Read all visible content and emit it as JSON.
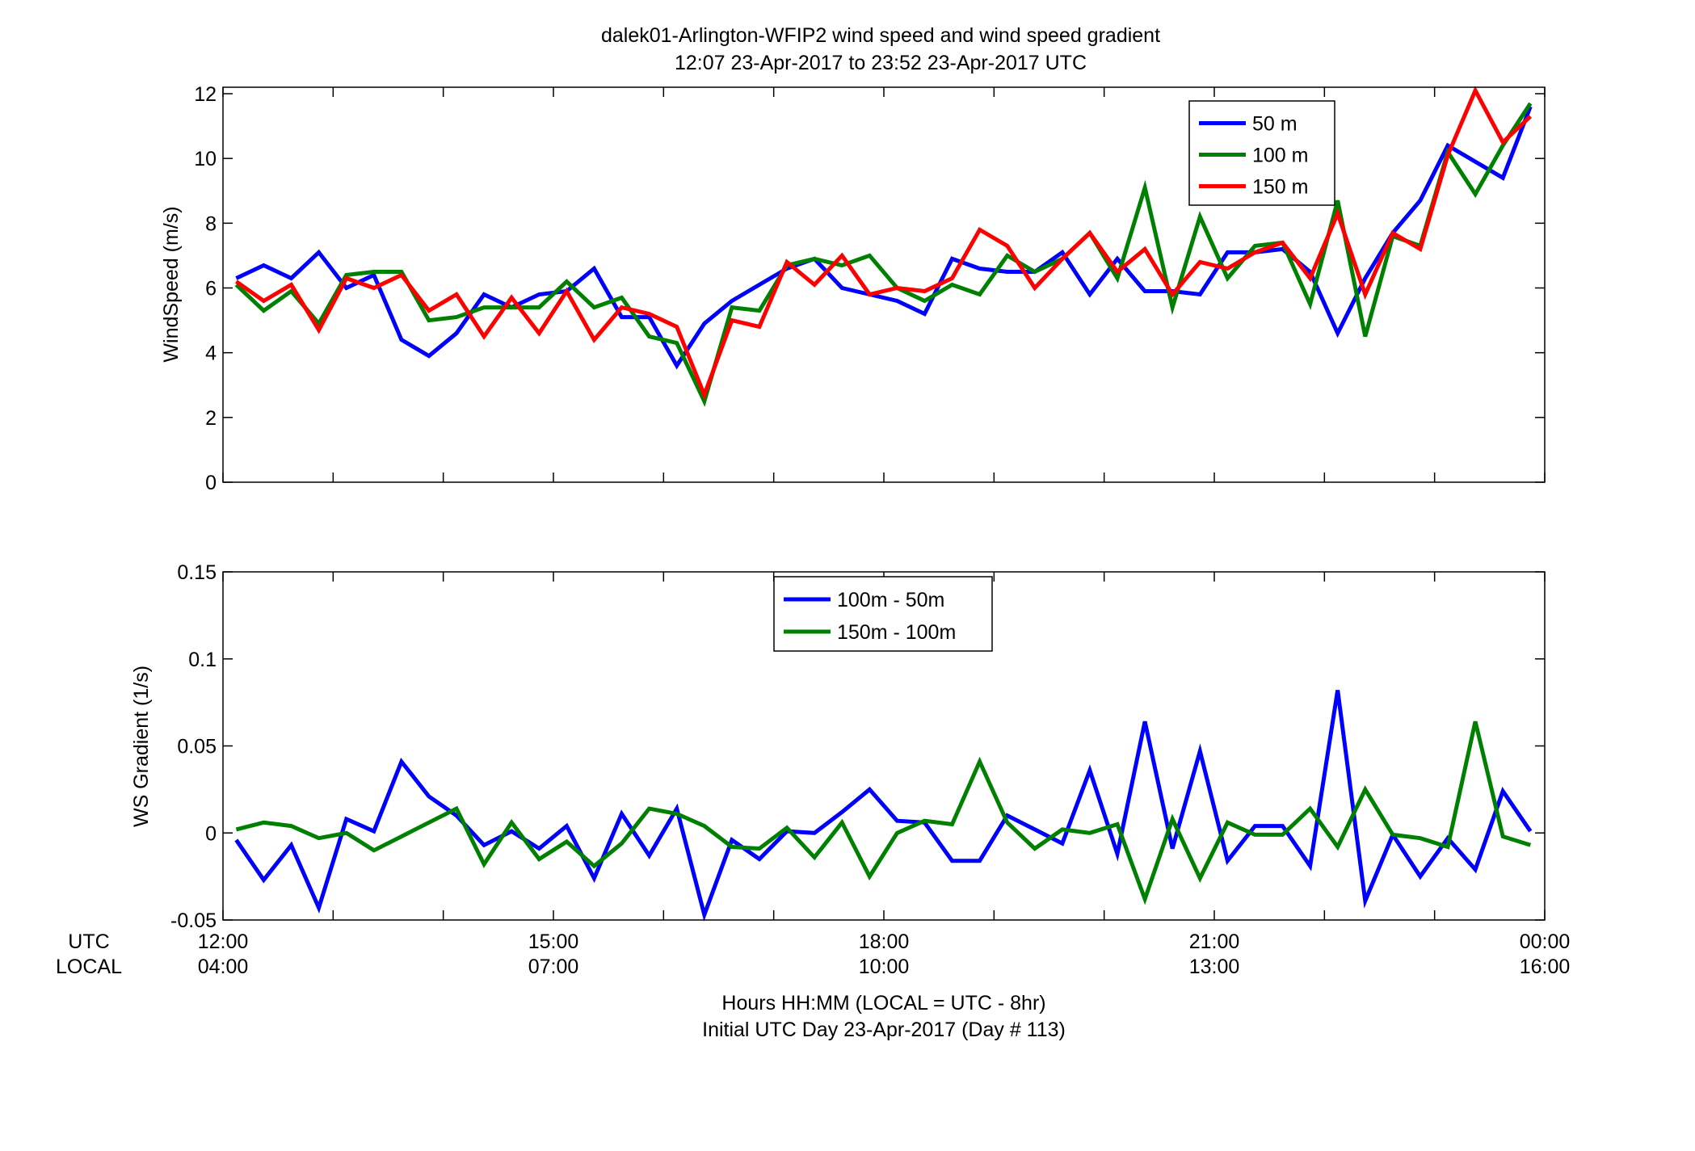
{
  "title": {
    "line1": "dalek01-Arlington-WFIP2  wind speed and wind speed gradient",
    "line2": "12:07 23-Apr-2017 to 23:52 23-Apr-2017  UTC"
  },
  "xaxis": {
    "utc_row_label": "UTC",
    "local_row_label": "LOCAL",
    "utc_ticks": [
      "12:00",
      "15:00",
      "18:00",
      "21:00",
      "00:00"
    ],
    "local_ticks": [
      "04:00",
      "07:00",
      "10:00",
      "13:00",
      "16:00"
    ],
    "xlabel_line1": "Hours HH:MM  (LOCAL = UTC - 8hr)",
    "xlabel_line2": "Initial UTC Day 23-Apr-2017 (Day # 113)"
  },
  "chart_data": [
    {
      "type": "line",
      "ylabel": "WindSpeed (m/s)",
      "xlim": [
        12,
        24
      ],
      "ylim": [
        0,
        12.2
      ],
      "yticks": [
        0,
        2,
        4,
        6,
        8,
        10,
        12
      ],
      "legend_position": "top-right",
      "grid": false,
      "x": [
        12.12,
        12.37,
        12.62,
        12.87,
        13.12,
        13.37,
        13.62,
        13.87,
        14.12,
        14.37,
        14.62,
        14.87,
        15.12,
        15.37,
        15.62,
        15.87,
        16.12,
        16.37,
        16.62,
        16.87,
        17.12,
        17.37,
        17.62,
        17.87,
        18.12,
        18.37,
        18.62,
        18.87,
        19.12,
        19.37,
        19.62,
        19.87,
        20.12,
        20.37,
        20.62,
        20.87,
        21.12,
        21.37,
        21.62,
        21.87,
        22.12,
        22.37,
        22.62,
        22.87,
        23.12,
        23.37,
        23.62,
        23.87
      ],
      "series": [
        {
          "name": "50 m",
          "color": "#0000ff",
          "values": [
            6.3,
            6.7,
            6.3,
            7.1,
            6.0,
            6.4,
            4.4,
            3.9,
            4.6,
            5.8,
            5.4,
            5.8,
            5.9,
            6.6,
            5.1,
            5.1,
            3.6,
            4.9,
            5.6,
            6.1,
            6.6,
            6.9,
            6.0,
            5.8,
            5.6,
            5.2,
            6.9,
            6.6,
            6.5,
            6.5,
            7.1,
            5.8,
            6.9,
            5.9,
            5.9,
            5.8,
            7.1,
            7.1,
            7.2,
            6.5,
            4.6,
            6.3,
            7.7,
            8.7,
            10.4,
            9.9,
            9.4,
            11.6
          ]
        },
        {
          "name": "100 m",
          "color": "#008000",
          "values": [
            6.1,
            5.3,
            5.9,
            4.9,
            6.4,
            6.5,
            6.5,
            5.0,
            5.1,
            5.4,
            5.4,
            5.4,
            6.2,
            5.4,
            5.7,
            4.5,
            4.3,
            2.5,
            5.4,
            5.3,
            6.7,
            6.9,
            6.7,
            7.0,
            6.0,
            5.6,
            6.1,
            5.8,
            7.0,
            6.5,
            6.9,
            7.7,
            6.3,
            9.1,
            5.4,
            8.2,
            6.3,
            7.3,
            7.4,
            5.5,
            8.7,
            4.5,
            7.6,
            7.3,
            10.2,
            8.9,
            10.4,
            11.7
          ]
        },
        {
          "name": "150 m",
          "color": "#ff0000",
          "values": [
            6.2,
            5.6,
            6.1,
            4.7,
            6.3,
            6.0,
            6.4,
            5.3,
            5.8,
            4.5,
            5.7,
            4.6,
            5.9,
            4.4,
            5.4,
            5.2,
            4.8,
            2.7,
            5.0,
            4.8,
            6.8,
            6.1,
            7.0,
            5.8,
            6.0,
            5.9,
            6.3,
            7.8,
            7.3,
            6.0,
            6.9,
            7.7,
            6.5,
            7.2,
            5.8,
            6.8,
            6.6,
            7.1,
            7.4,
            6.3,
            8.3,
            5.8,
            7.7,
            7.2,
            10.1,
            12.1,
            10.5,
            11.3
          ]
        }
      ]
    },
    {
      "type": "line",
      "ylabel": "WS Gradient (1/s)",
      "xlim": [
        12,
        24
      ],
      "ylim": [
        -0.05,
        0.15
      ],
      "yticks": [
        -0.05,
        0,
        0.05,
        0.1,
        0.15
      ],
      "ytick_labels": [
        "-0.05",
        "0",
        "0.05",
        "0.1",
        "0.15"
      ],
      "legend_position": "top-center",
      "grid": false,
      "x": [
        12.12,
        12.37,
        12.62,
        12.87,
        13.12,
        13.37,
        13.62,
        13.87,
        14.12,
        14.37,
        14.62,
        14.87,
        15.12,
        15.37,
        15.62,
        15.87,
        16.12,
        16.37,
        16.62,
        16.87,
        17.12,
        17.37,
        17.62,
        17.87,
        18.12,
        18.37,
        18.62,
        18.87,
        19.12,
        19.37,
        19.62,
        19.87,
        20.12,
        20.37,
        20.62,
        20.87,
        21.12,
        21.37,
        21.62,
        21.87,
        22.12,
        22.37,
        22.62,
        22.87,
        23.12,
        23.37,
        23.62,
        23.87
      ],
      "series": [
        {
          "name": "100m - 50m",
          "color": "#0000ff",
          "values": [
            -0.004,
            -0.027,
            -0.007,
            -0.043,
            0.008,
            0.001,
            0.041,
            0.021,
            0.01,
            -0.007,
            0.001,
            -0.009,
            0.004,
            -0.026,
            0.011,
            -0.013,
            0.014,
            -0.047,
            -0.004,
            -0.015,
            0.001,
            0.0,
            0.012,
            0.025,
            0.007,
            0.006,
            -0.016,
            -0.016,
            0.01,
            0.002,
            -0.006,
            0.036,
            -0.012,
            0.064,
            -0.009,
            0.047,
            -0.016,
            0.004,
            0.004,
            -0.019,
            0.082,
            -0.039,
            -0.001,
            -0.025,
            -0.003,
            -0.021,
            0.024,
            0.001
          ]
        },
        {
          "name": "150m - 100m",
          "color": "#008000",
          "values": [
            0.002,
            0.006,
            0.004,
            -0.003,
            0.0,
            -0.01,
            -0.002,
            0.006,
            0.014,
            -0.018,
            0.006,
            -0.015,
            -0.005,
            -0.019,
            -0.006,
            0.014,
            0.011,
            0.004,
            -0.008,
            -0.009,
            0.003,
            -0.014,
            0.006,
            -0.025,
            0.0,
            0.007,
            0.005,
            0.041,
            0.006,
            -0.009,
            0.002,
            0.0,
            0.005,
            -0.038,
            0.008,
            -0.026,
            0.006,
            -0.001,
            -0.001,
            0.014,
            -0.008,
            0.025,
            -0.001,
            -0.003,
            -0.008,
            0.064,
            -0.002,
            -0.007
          ]
        }
      ]
    }
  ]
}
